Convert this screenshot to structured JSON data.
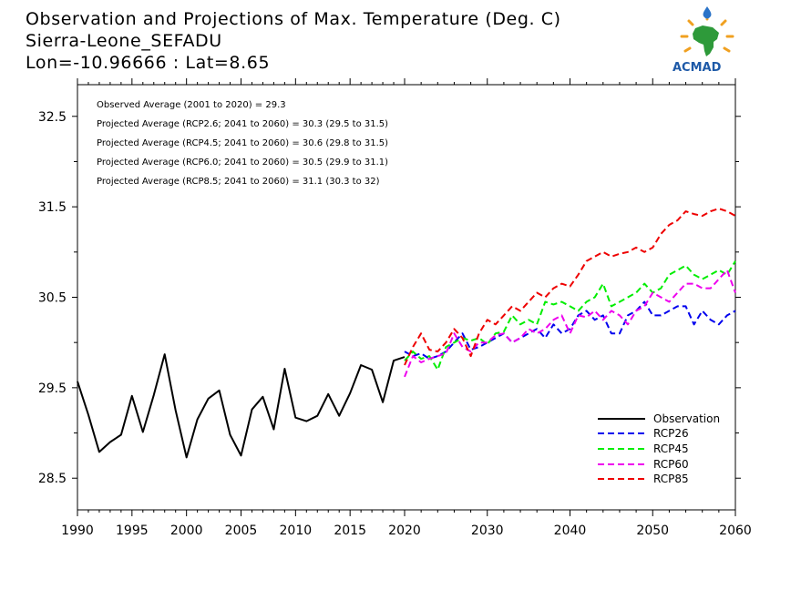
{
  "header": {
    "title": "Observation and Projections of Max. Temperature (Deg. C)",
    "station": "Sierra-Leone_SEFADU",
    "coords": "Lon=-10.96666 : Lat=8.65"
  },
  "logo": {
    "text": "ACMAD"
  },
  "annotations": [
    "Observed Average (2001 to 2020) = 29.3",
    "Projected Average (RCP2.6; 2041 to 2060) = 30.3 (29.5 to 31.5)",
    "Projected Average (RCP4.5; 2041 to 2060) = 30.6 (29.8 to 31.5)",
    "Projected Average (RCP6.0; 2041 to 2060) = 30.5 (29.9 to 31.1)",
    "Projected Average (RCP8.5; 2041 to 2060) = 31.1 (30.3 to 32)"
  ],
  "chart_data": {
    "type": "line",
    "title": "Observation and Projections of Max. Temperature (Deg. C)",
    "xlim": [
      1990,
      2060
    ],
    "ylim": [
      28.15,
      32.85
    ],
    "y_ticks": [
      28.5,
      29.5,
      30.5,
      31.5,
      32.5
    ],
    "y_tick_labels": [
      "28.5",
      "29.5",
      "30.5",
      "31.5",
      "32.5"
    ],
    "x_ticks_obs": [
      1990,
      1995,
      2000,
      2005,
      2010,
      2015,
      2020
    ],
    "x_ticks_proj": [
      2020,
      2030,
      2040,
      2050,
      2060
    ],
    "x_tick_labels": [
      "1990",
      "1995",
      "2000",
      "2005",
      "2010",
      "2015",
      "2020",
      "2030",
      "2040",
      "2050",
      "2060"
    ],
    "grid": false,
    "legend_position": "bottom-right",
    "series": [
      {
        "name": "Observation",
        "color": "#000000",
        "dash": "solid",
        "x": [
          1990,
          1991,
          1992,
          1993,
          1994,
          1995,
          1996,
          1997,
          1998,
          1999,
          2000,
          2001,
          2002,
          2003,
          2004,
          2005,
          2006,
          2007,
          2008,
          2009,
          2010,
          2011,
          2012,
          2013,
          2014,
          2015,
          2016,
          2017,
          2018,
          2019,
          2020
        ],
        "values": [
          29.57,
          29.2,
          28.79,
          28.9,
          28.98,
          29.41,
          29.01,
          29.42,
          29.87,
          29.25,
          28.73,
          29.15,
          29.38,
          29.47,
          28.98,
          28.75,
          29.26,
          29.4,
          29.04,
          29.71,
          29.17,
          29.13,
          29.19,
          29.43,
          29.19,
          29.44,
          29.75,
          29.7,
          29.34,
          29.8,
          29.84
        ]
      },
      {
        "name": "RCP26",
        "color": "#0000ee",
        "dash": "dashed",
        "x": [
          2020,
          2021,
          2022,
          2023,
          2024,
          2025,
          2026,
          2027,
          2028,
          2029,
          2030,
          2031,
          2032,
          2033,
          2034,
          2035,
          2036,
          2037,
          2038,
          2039,
          2040,
          2041,
          2042,
          2043,
          2044,
          2045,
          2046,
          2047,
          2048,
          2049,
          2050,
          2051,
          2052,
          2053,
          2054,
          2055,
          2056,
          2057,
          2058,
          2059,
          2060
        ],
        "values": [
          29.9,
          29.85,
          29.88,
          29.82,
          29.85,
          29.9,
          30.0,
          30.1,
          29.92,
          29.95,
          30.0,
          30.05,
          30.1,
          30.0,
          30.05,
          30.1,
          30.15,
          30.05,
          30.2,
          30.1,
          30.15,
          30.3,
          30.35,
          30.25,
          30.3,
          30.1,
          30.1,
          30.3,
          30.35,
          30.45,
          30.3,
          30.3,
          30.35,
          30.4,
          30.4,
          30.2,
          30.35,
          30.25,
          30.2,
          30.3,
          30.35
        ]
      },
      {
        "name": "RCP45",
        "color": "#00ee00",
        "dash": "dashed",
        "x": [
          2020,
          2021,
          2022,
          2023,
          2024,
          2025,
          2026,
          2027,
          2028,
          2029,
          2030,
          2031,
          2032,
          2033,
          2034,
          2035,
          2036,
          2037,
          2038,
          2039,
          2040,
          2041,
          2042,
          2043,
          2044,
          2045,
          2046,
          2047,
          2048,
          2049,
          2050,
          2051,
          2052,
          2053,
          2054,
          2055,
          2056,
          2057,
          2058,
          2059,
          2060
        ],
        "values": [
          29.8,
          29.9,
          29.82,
          29.85,
          29.7,
          29.95,
          30.0,
          30.05,
          30.02,
          30.05,
          29.98,
          30.1,
          30.12,
          30.3,
          30.2,
          30.25,
          30.2,
          30.45,
          30.42,
          30.45,
          30.4,
          30.35,
          30.45,
          30.5,
          30.65,
          30.4,
          30.45,
          30.5,
          30.55,
          30.65,
          30.55,
          30.6,
          30.75,
          30.8,
          30.85,
          30.75,
          30.7,
          30.75,
          30.8,
          30.75,
          30.9
        ]
      },
      {
        "name": "RCP60",
        "color": "#ee00ee",
        "dash": "dashed",
        "x": [
          2020,
          2021,
          2022,
          2023,
          2024,
          2025,
          2026,
          2027,
          2028,
          2029,
          2030,
          2031,
          2032,
          2033,
          2034,
          2035,
          2036,
          2037,
          2038,
          2039,
          2040,
          2041,
          2042,
          2043,
          2044,
          2045,
          2046,
          2047,
          2048,
          2049,
          2050,
          2051,
          2052,
          2053,
          2054,
          2055,
          2056,
          2057,
          2058,
          2059,
          2060
        ],
        "values": [
          29.62,
          29.85,
          29.78,
          29.82,
          29.85,
          29.88,
          30.1,
          29.95,
          29.9,
          30.0,
          30.0,
          30.08,
          30.1,
          30.0,
          30.05,
          30.15,
          30.1,
          30.15,
          30.25,
          30.3,
          30.1,
          30.3,
          30.28,
          30.35,
          30.25,
          30.35,
          30.3,
          30.2,
          30.35,
          30.4,
          30.55,
          30.5,
          30.45,
          30.55,
          30.65,
          30.65,
          30.6,
          30.6,
          30.7,
          30.8,
          30.55
        ]
      },
      {
        "name": "RCP85",
        "color": "#ee0000",
        "dash": "dashed",
        "x": [
          2020,
          2021,
          2022,
          2023,
          2024,
          2025,
          2026,
          2027,
          2028,
          2029,
          2030,
          2031,
          2032,
          2033,
          2034,
          2035,
          2036,
          2037,
          2038,
          2039,
          2040,
          2041,
          2042,
          2043,
          2044,
          2045,
          2046,
          2047,
          2048,
          2049,
          2050,
          2051,
          2052,
          2053,
          2054,
          2055,
          2056,
          2057,
          2058,
          2059,
          2060
        ],
        "values": [
          29.75,
          29.95,
          30.1,
          29.92,
          29.9,
          30.0,
          30.15,
          30.05,
          29.85,
          30.1,
          30.25,
          30.2,
          30.3,
          30.4,
          30.35,
          30.45,
          30.55,
          30.5,
          30.6,
          30.65,
          30.62,
          30.75,
          30.9,
          30.95,
          31.0,
          30.95,
          30.98,
          31.0,
          31.05,
          31.0,
          31.05,
          31.2,
          31.3,
          31.35,
          31.45,
          31.42,
          31.4,
          31.45,
          31.48,
          31.45,
          31.4
        ]
      }
    ]
  }
}
